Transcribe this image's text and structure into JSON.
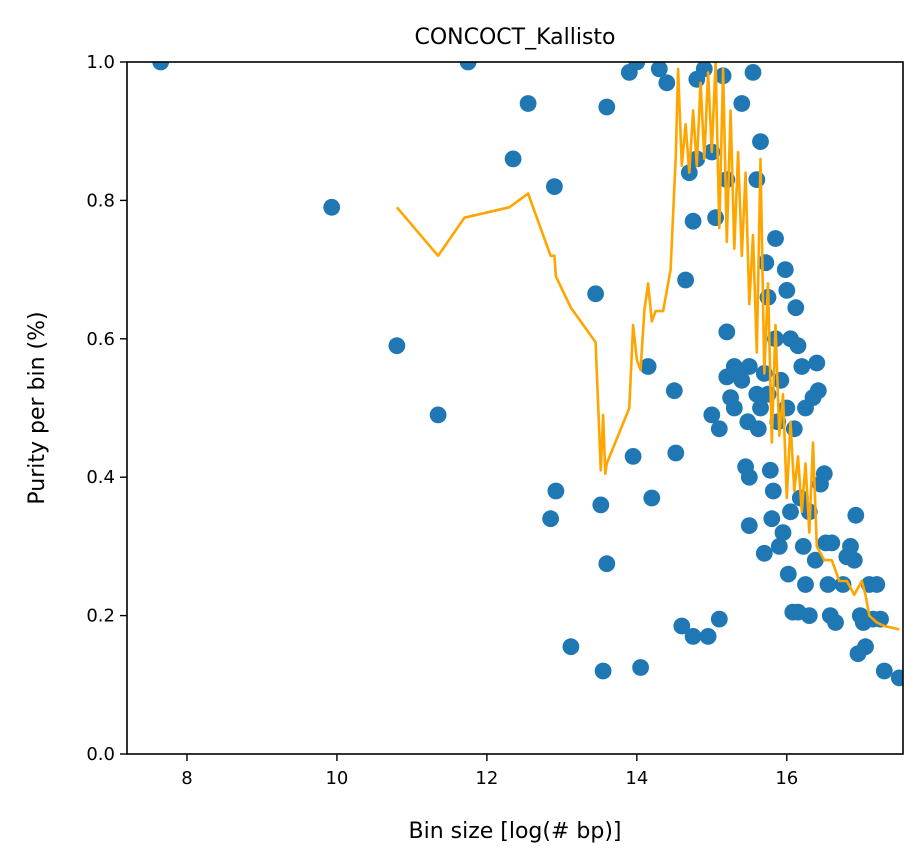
{
  "chart_data": {
    "type": "scatter",
    "title": "CONCOCT_Kallisto",
    "xlabel": "Bin size [log(# bp)]",
    "ylabel": "Purity per bin (%)",
    "xlim": [
      7.2,
      17.55
    ],
    "ylim": [
      0,
      1
    ],
    "x_ticks": [
      8,
      10,
      12,
      14,
      16
    ],
    "y_ticks": [
      0.0,
      0.2,
      0.4,
      0.6,
      0.8,
      1.0
    ],
    "grid": false,
    "colors": {
      "points": "#1f77b4",
      "line": "#ffa500"
    },
    "series": [
      {
        "type": "scatter",
        "points": [
          [
            7.65,
            1.0
          ],
          [
            9.93,
            0.79
          ],
          [
            10.8,
            0.59
          ],
          [
            11.35,
            0.49
          ],
          [
            11.75,
            1.0
          ],
          [
            12.35,
            0.86
          ],
          [
            12.55,
            0.94
          ],
          [
            12.85,
            0.34
          ],
          [
            12.9,
            0.82
          ],
          [
            12.92,
            0.38
          ],
          [
            13.12,
            0.155
          ],
          [
            13.45,
            0.665
          ],
          [
            13.52,
            0.36
          ],
          [
            13.55,
            0.12
          ],
          [
            13.6,
            0.275
          ],
          [
            13.6,
            0.935
          ],
          [
            13.9,
            0.985
          ],
          [
            13.95,
            0.43
          ],
          [
            14.0,
            1.0
          ],
          [
            14.05,
            0.125
          ],
          [
            14.15,
            0.56
          ],
          [
            14.2,
            0.37
          ],
          [
            14.3,
            0.99
          ],
          [
            14.4,
            0.97
          ],
          [
            14.5,
            0.525
          ],
          [
            14.52,
            0.435
          ],
          [
            14.6,
            0.185
          ],
          [
            14.65,
            0.685
          ],
          [
            14.7,
            0.84
          ],
          [
            14.75,
            0.77
          ],
          [
            14.75,
            0.17
          ],
          [
            14.8,
            0.86
          ],
          [
            14.8,
            0.975
          ],
          [
            14.9,
            0.99
          ],
          [
            14.95,
            0.17
          ],
          [
            15.0,
            0.49
          ],
          [
            15.0,
            0.87
          ],
          [
            15.05,
            0.775
          ],
          [
            15.1,
            0.195
          ],
          [
            15.1,
            0.47
          ],
          [
            15.15,
            0.98
          ],
          [
            15.2,
            0.83
          ],
          [
            15.2,
            0.61
          ],
          [
            15.2,
            0.545
          ],
          [
            15.25,
            0.515
          ],
          [
            15.3,
            0.56
          ],
          [
            15.3,
            0.5
          ],
          [
            15.35,
            0.55
          ],
          [
            15.4,
            0.94
          ],
          [
            15.4,
            0.54
          ],
          [
            15.45,
            0.415
          ],
          [
            15.48,
            0.48
          ],
          [
            15.5,
            0.33
          ],
          [
            15.5,
            0.4
          ],
          [
            15.5,
            0.56
          ],
          [
            15.55,
            0.985
          ],
          [
            15.6,
            0.52
          ],
          [
            15.6,
            0.83
          ],
          [
            15.62,
            0.47
          ],
          [
            15.65,
            0.885
          ],
          [
            15.65,
            0.5
          ],
          [
            15.7,
            0.29
          ],
          [
            15.7,
            0.55
          ],
          [
            15.72,
            0.71
          ],
          [
            15.75,
            0.66
          ],
          [
            15.75,
            0.52
          ],
          [
            15.78,
            0.41
          ],
          [
            15.8,
            0.34
          ],
          [
            15.82,
            0.38
          ],
          [
            15.85,
            0.745
          ],
          [
            15.85,
            0.6
          ],
          [
            15.88,
            0.48
          ],
          [
            15.9,
            0.3
          ],
          [
            15.92,
            0.54
          ],
          [
            15.95,
            0.32
          ],
          [
            15.98,
            0.7
          ],
          [
            16.0,
            0.67
          ],
          [
            16.0,
            0.5
          ],
          [
            16.02,
            0.26
          ],
          [
            16.05,
            0.35
          ],
          [
            16.05,
            0.6
          ],
          [
            16.08,
            0.205
          ],
          [
            16.1,
            0.47
          ],
          [
            16.12,
            0.645
          ],
          [
            16.15,
            0.205
          ],
          [
            16.15,
            0.59
          ],
          [
            16.18,
            0.37
          ],
          [
            16.2,
            0.56
          ],
          [
            16.22,
            0.3
          ],
          [
            16.25,
            0.245
          ],
          [
            16.25,
            0.5
          ],
          [
            16.3,
            0.2
          ],
          [
            16.3,
            0.35
          ],
          [
            16.35,
            0.515
          ],
          [
            16.38,
            0.28
          ],
          [
            16.4,
            0.565
          ],
          [
            16.42,
            0.525
          ],
          [
            16.45,
            0.39
          ],
          [
            16.5,
            0.405
          ],
          [
            16.52,
            0.305
          ],
          [
            16.55,
            0.245
          ],
          [
            16.58,
            0.2
          ],
          [
            16.6,
            0.305
          ],
          [
            16.65,
            0.19
          ],
          [
            16.75,
            0.245
          ],
          [
            16.8,
            0.285
          ],
          [
            16.85,
            0.3
          ],
          [
            16.9,
            0.28
          ],
          [
            16.92,
            0.345
          ],
          [
            16.95,
            0.145
          ],
          [
            16.98,
            0.2
          ],
          [
            17.02,
            0.19
          ],
          [
            17.05,
            0.155
          ],
          [
            17.1,
            0.245
          ],
          [
            17.15,
            0.195
          ],
          [
            17.2,
            0.245
          ],
          [
            17.25,
            0.195
          ],
          [
            17.3,
            0.12
          ],
          [
            17.5,
            0.11
          ]
        ]
      },
      {
        "type": "line",
        "points": [
          [
            10.8,
            0.79
          ],
          [
            11.35,
            0.72
          ],
          [
            11.7,
            0.775
          ],
          [
            12.3,
            0.79
          ],
          [
            12.55,
            0.81
          ],
          [
            12.85,
            0.72
          ],
          [
            12.9,
            0.72
          ],
          [
            12.92,
            0.69
          ],
          [
            13.12,
            0.645
          ],
          [
            13.45,
            0.595
          ],
          [
            13.52,
            0.41
          ],
          [
            13.55,
            0.49
          ],
          [
            13.58,
            0.405
          ],
          [
            13.6,
            0.42
          ],
          [
            13.9,
            0.5
          ],
          [
            13.95,
            0.62
          ],
          [
            14.0,
            0.57
          ],
          [
            14.05,
            0.555
          ],
          [
            14.1,
            0.64
          ],
          [
            14.15,
            0.68
          ],
          [
            14.2,
            0.625
          ],
          [
            14.25,
            0.64
          ],
          [
            14.35,
            0.64
          ],
          [
            14.45,
            0.7
          ],
          [
            14.52,
            0.865
          ],
          [
            14.55,
            0.99
          ],
          [
            14.6,
            0.85
          ],
          [
            14.65,
            0.91
          ],
          [
            14.7,
            0.84
          ],
          [
            14.75,
            0.93
          ],
          [
            14.8,
            0.85
          ],
          [
            14.85,
            0.97
          ],
          [
            14.9,
            0.86
          ],
          [
            14.95,
            0.985
          ],
          [
            15.0,
            0.87
          ],
          [
            15.05,
            1.0
          ],
          [
            15.1,
            0.76
          ],
          [
            15.15,
            0.99
          ],
          [
            15.2,
            0.74
          ],
          [
            15.25,
            0.93
          ],
          [
            15.3,
            0.73
          ],
          [
            15.35,
            0.87
          ],
          [
            15.4,
            0.72
          ],
          [
            15.45,
            0.84
          ],
          [
            15.5,
            0.65
          ],
          [
            15.55,
            0.75
          ],
          [
            15.6,
            0.58
          ],
          [
            15.65,
            0.86
          ],
          [
            15.7,
            0.55
          ],
          [
            15.75,
            0.68
          ],
          [
            15.8,
            0.45
          ],
          [
            15.85,
            0.62
          ],
          [
            15.9,
            0.46
          ],
          [
            15.95,
            0.52
          ],
          [
            16.0,
            0.37
          ],
          [
            16.05,
            0.48
          ],
          [
            16.1,
            0.38
          ],
          [
            16.15,
            0.43
          ],
          [
            16.2,
            0.35
          ],
          [
            16.25,
            0.42
          ],
          [
            16.3,
            0.32
          ],
          [
            16.35,
            0.45
          ],
          [
            16.4,
            0.3
          ],
          [
            16.5,
            0.28
          ],
          [
            16.6,
            0.28
          ],
          [
            16.7,
            0.25
          ],
          [
            16.8,
            0.25
          ],
          [
            16.9,
            0.23
          ],
          [
            17.0,
            0.25
          ],
          [
            17.05,
            0.23
          ],
          [
            17.1,
            0.2
          ],
          [
            17.2,
            0.19
          ],
          [
            17.3,
            0.185
          ],
          [
            17.5,
            0.18
          ]
        ]
      }
    ]
  }
}
